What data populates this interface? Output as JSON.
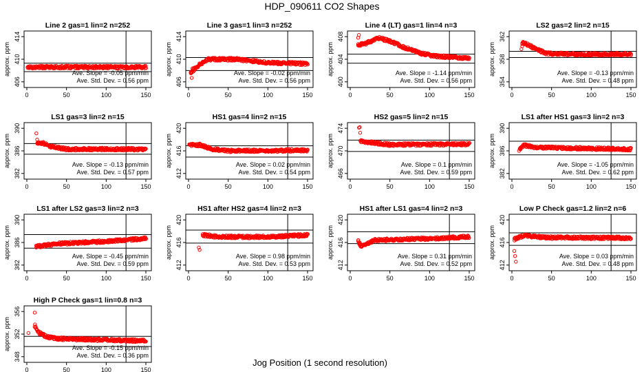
{
  "page_title": "HDP_090611  CO2 Shapes",
  "x_axis_label": "Jog Position (1 second resolution)",
  "y_axis_label": "approx. ppm",
  "slope_prefix": "Ave. Slope = ",
  "slope_unit": "ppm/min",
  "std_prefix": "Ave. Std. Dev. = ",
  "std_unit": "ppm",
  "colors": {
    "points": "#ff0000",
    "axes": "#000000",
    "background": "#ffffff"
  },
  "chart_data": [
    {
      "type": "scatter",
      "title": "Line 2 gas=1 lin=2 n=252",
      "xlim": [
        0,
        150
      ],
      "ylim": [
        405,
        415
      ],
      "yticks": [
        406,
        410,
        414
      ],
      "xticks": [
        0,
        50,
        100,
        150
      ],
      "hlines": [
        409.3,
        407.8
      ],
      "vline": 125,
      "slope": "-0.05",
      "std_dev": "0.56",
      "series_shape": [
        [
          1,
          408.6
        ],
        [
          150,
          408.6
        ]
      ]
    },
    {
      "type": "scatter",
      "title": "Line 3 gas=1 lin=3 n=252",
      "xlim": [
        0,
        150
      ],
      "ylim": [
        405,
        415
      ],
      "yticks": [
        406,
        410,
        414
      ],
      "xticks": [
        0,
        50,
        100,
        150
      ],
      "hlines": [
        410.3,
        408.0
      ],
      "vline": 125,
      "slope": "-0.02",
      "std_dev": "0.56",
      "series_shape": [
        [
          3,
          407.7
        ],
        [
          8,
          408.3
        ],
        [
          15,
          409.2
        ],
        [
          25,
          410.0
        ],
        [
          60,
          410.0
        ],
        [
          100,
          409.4
        ],
        [
          150,
          409.2
        ]
      ]
    },
    {
      "type": "scatter",
      "title": "Line 4 (LT) gas=1 lin=4 n=3",
      "xlim": [
        0,
        150
      ],
      "ylim": [
        399,
        409
      ],
      "yticks": [
        400,
        404,
        408
      ],
      "xticks": [
        0,
        50,
        100,
        150
      ],
      "hlines": [
        404.9,
        403.3
      ],
      "vline": 125,
      "slope": "-1.14",
      "std_dev": "0.56",
      "series_shape": [
        [
          10,
          406.5
        ],
        [
          20,
          406.8
        ],
        [
          35,
          407.8
        ],
        [
          50,
          407.2
        ],
        [
          70,
          406.0
        ],
        [
          90,
          405.0
        ],
        [
          110,
          404.5
        ],
        [
          150,
          404.2
        ]
      ]
    },
    {
      "type": "scatter",
      "title": "LS2 gas=2 lin=2 n=15",
      "xlim": [
        0,
        150
      ],
      "ylim": [
        353,
        363
      ],
      "yticks": [
        354,
        358,
        362
      ],
      "xticks": [
        0,
        50,
        100,
        150
      ],
      "hlines": [
        359.4,
        358.3
      ],
      "vline": 125,
      "slope": "-0.13",
      "std_dev": "0.48",
      "series_shape": [
        [
          13,
          360.9
        ],
        [
          20,
          360.6
        ],
        [
          30,
          359.8
        ],
        [
          45,
          359.0
        ],
        [
          80,
          358.9
        ],
        [
          150,
          358.9
        ]
      ]
    },
    {
      "type": "scatter",
      "title": "LS1 gas=3 lin=2 n=15",
      "xlim": [
        0,
        150
      ],
      "ylim": [
        381,
        391
      ],
      "yticks": [
        382,
        386,
        390
      ],
      "xticks": [
        0,
        50,
        100,
        150
      ],
      "hlines": [
        387.3,
        385.4
      ],
      "vline": 125,
      "slope": "-0.13",
      "std_dev": "0.57",
      "series_shape": [
        [
          13,
          387.4
        ],
        [
          20,
          387.4
        ],
        [
          30,
          386.8
        ],
        [
          50,
          386.3
        ],
        [
          150,
          386.3
        ]
      ]
    },
    {
      "type": "scatter",
      "title": "HS1 gas=4 lin=2 n=15",
      "xlim": [
        0,
        150
      ],
      "ylim": [
        411,
        421
      ],
      "yticks": [
        412,
        416,
        420
      ],
      "xticks": [
        0,
        50,
        100,
        150
      ],
      "hlines": [
        416.9,
        414.9
      ],
      "vline": 125,
      "slope": "0.02",
      "std_dev": "0.54",
      "series_shape": [
        [
          1,
          417.1
        ],
        [
          15,
          417.0
        ],
        [
          30,
          416.3
        ],
        [
          50,
          416.0
        ],
        [
          150,
          416.1
        ]
      ]
    },
    {
      "type": "scatter",
      "title": "HS2 gas=5 lin=2 n=15",
      "xlim": [
        0,
        150
      ],
      "ylim": [
        465,
        475
      ],
      "yticks": [
        466,
        470,
        474
      ],
      "xticks": [
        0,
        50,
        100,
        150
      ],
      "hlines": [
        471.9,
        469.9
      ],
      "vline": 125,
      "slope": "0.1",
      "std_dev": "0.59",
      "series_shape": [
        [
          13,
          471.7
        ],
        [
          25,
          471.5
        ],
        [
          50,
          471.1
        ],
        [
          150,
          471.2
        ]
      ]
    },
    {
      "type": "scatter",
      "title": "LS1 after HS1 gas=3 lin=2 n=3",
      "xlim": [
        0,
        150
      ],
      "ylim": [
        381,
        391
      ],
      "yticks": [
        382,
        386,
        390
      ],
      "xticks": [
        0,
        50,
        100,
        150
      ],
      "hlines": [
        387.7,
        385.3
      ],
      "vline": 125,
      "slope": "-1.05",
      "std_dev": "0.62",
      "series_shape": [
        [
          10,
          386.2
        ],
        [
          15,
          387.0
        ],
        [
          30,
          386.6
        ],
        [
          150,
          386.3
        ]
      ]
    },
    {
      "type": "scatter",
      "title": "LS1 after LS2 gas=3 lin=2 n=3",
      "xlim": [
        0,
        150
      ],
      "ylim": [
        381,
        391
      ],
      "yticks": [
        382,
        386,
        390
      ],
      "xticks": [
        0,
        50,
        100,
        150
      ],
      "hlines": [
        387.4,
        385.0
      ],
      "vline": 125,
      "slope": "-0.45",
      "std_dev": "0.59",
      "series_shape": [
        [
          12,
          385.3
        ],
        [
          40,
          385.8
        ],
        [
          100,
          386.2
        ],
        [
          150,
          386.7
        ]
      ]
    },
    {
      "type": "scatter",
      "title": "HS1 after HS2 gas=4 lin=2 n=3",
      "xlim": [
        0,
        150
      ],
      "ylim": [
        411,
        421
      ],
      "yticks": [
        412,
        416,
        420
      ],
      "xticks": [
        0,
        50,
        100,
        150
      ],
      "hlines": [
        418.2,
        415.9
      ],
      "vline": 125,
      "slope": "0.98",
      "std_dev": "0.53",
      "series_shape": [
        [
          18,
          417.3
        ],
        [
          40,
          417.0
        ],
        [
          100,
          417.0
        ],
        [
          150,
          417.3
        ]
      ]
    },
    {
      "type": "scatter",
      "title": "HS1 after LS1 gas=4 lin=2 n=3",
      "xlim": [
        0,
        150
      ],
      "ylim": [
        411,
        421
      ],
      "yticks": [
        412,
        416,
        420
      ],
      "xticks": [
        0,
        50,
        100,
        150
      ],
      "hlines": [
        417.9,
        415.8
      ],
      "vline": 125,
      "slope": "0.31",
      "std_dev": "0.52",
      "series_shape": [
        [
          10,
          416.2
        ],
        [
          14,
          415.3
        ],
        [
          30,
          416.4
        ],
        [
          100,
          416.7
        ],
        [
          150,
          417.0
        ]
      ]
    },
    {
      "type": "scatter",
      "title": "Low P Check gas=1.2 lin=2 n=6",
      "xlim": [
        0,
        150
      ],
      "ylim": [
        411,
        421
      ],
      "yticks": [
        412,
        416,
        420
      ],
      "xticks": [
        0,
        50,
        100,
        150
      ],
      "hlines": [
        417.7,
        415.5
      ],
      "vline": 125,
      "slope": "0.03",
      "std_dev": "0.48",
      "series_shape": [
        [
          3,
          416.6
        ],
        [
          15,
          417.2
        ],
        [
          40,
          416.9
        ],
        [
          150,
          416.8
        ]
      ]
    },
    {
      "type": "scatter",
      "title": "High P Check gas=1 lin=0.8 n=3",
      "xlim": [
        0,
        150
      ],
      "ylim": [
        347,
        357
      ],
      "yticks": [
        348,
        352,
        356
      ],
      "xticks": [
        0,
        50,
        100,
        150
      ],
      "hlines": [
        351.6,
        349.8
      ],
      "vline": 125,
      "slope": "-0.15",
      "std_dev": "0.36",
      "series_shape": [
        [
          10,
          353.5
        ],
        [
          15,
          352.3
        ],
        [
          25,
          351.5
        ],
        [
          40,
          351.2
        ],
        [
          150,
          350.8
        ]
      ]
    }
  ],
  "outliers": [
    [],
    [
      [
        3,
        407.5
      ],
      [
        4,
        406.7
      ],
      [
        5,
        408.4
      ]
    ],
    [
      [
        10,
        407.8
      ],
      [
        11,
        408.3
      ]
    ],
    [
      [
        12,
        359.8
      ],
      [
        13,
        360.3
      ]
    ],
    [
      [
        12,
        389.1
      ],
      [
        13,
        388.0
      ]
    ],
    [
      [
        14,
        417.3
      ]
    ],
    [
      [
        11,
        474.1
      ],
      [
        12,
        474.2
      ],
      [
        12.5,
        473.2
      ]
    ],
    [
      [
        9,
        386.0
      ]
    ],
    [],
    [
      [
        13,
        415.1
      ],
      [
        14,
        414.7
      ]
    ],
    [
      [
        12,
        416.0
      ],
      [
        13,
        415.3
      ]
    ],
    [
      [
        3,
        414.5
      ],
      [
        4,
        413.6
      ],
      [
        5,
        412.6
      ]
    ],
    [
      [
        2,
        352.2
      ],
      [
        10,
        355.8
      ]
    ]
  ]
}
